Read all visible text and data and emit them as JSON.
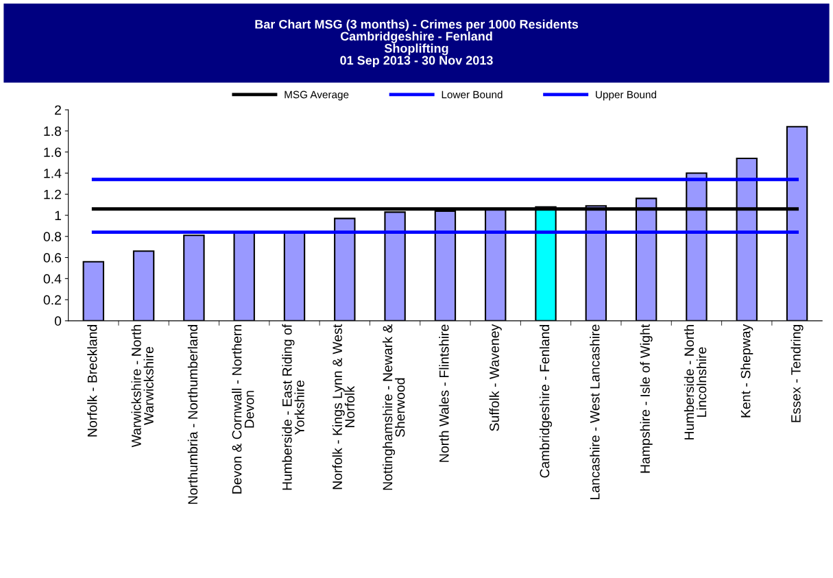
{
  "chart_data": {
    "type": "bar",
    "title": "Bar Chart MSG (3 months) - Crimes per 1000 Residents\nCambridgeshire - Fenland\nShoplifting\n01 Sep 2013 - 30 Nov 2013",
    "categories": [
      "Norfolk - Breckland",
      "Warwickshire - North\nWarwickshire",
      "Northumbria - Northumberland",
      "Devon & Cornwall - Northern\nDevon",
      "Humberside - East Riding of\nYorkshire",
      "Norfolk - Kings Lynn & West\nNorfolk",
      "Nottinghamshire - Newark &\nSherwood",
      "North Wales - Flintshire",
      "Suffolk - Waveney",
      "Cambridgeshire - Fenland",
      "Lancashire - West Lancashire",
      "Hampshire - Isle of Wight",
      "Humberside - North\nLincolnshire",
      "Kent - Shepway",
      "Essex - Tendring"
    ],
    "series": [
      {
        "colors": [
          "#9999ff",
          "#9999ff",
          "#9999ff",
          "#9999ff",
          "#9999ff",
          "#9999ff",
          "#9999ff",
          "#9999ff",
          "#9999ff",
          "#00ffff",
          "#9999ff",
          "#9999ff",
          "#9999ff",
          "#9999ff",
          "#9999ff"
        ],
        "values": [
          0.56,
          0.66,
          0.81,
          0.84,
          0.84,
          0.97,
          1.03,
          1.04,
          1.06,
          1.08,
          1.09,
          1.16,
          1.4,
          1.54,
          1.84
        ]
      },
      {
        "type": "line",
        "name": "MSG Average",
        "color": "#000000",
        "values": [
          1.06,
          1.06,
          1.06,
          1.06,
          1.06,
          1.06,
          1.06,
          1.06,
          1.06,
          1.06,
          1.06,
          1.06,
          1.06,
          1.06,
          1.06
        ]
      },
      {
        "type": "line",
        "name": "Lower Bound",
        "color": "#0000ff",
        "values": [
          0.84,
          0.84,
          0.84,
          0.84,
          0.84,
          0.84,
          0.84,
          0.84,
          0.84,
          0.84,
          0.84,
          0.84,
          0.84,
          0.84,
          0.84
        ]
      },
      {
        "type": "line",
        "name": "Upper Bound",
        "color": "#0000ff",
        "values": [
          1.34,
          1.34,
          1.34,
          1.34,
          1.34,
          1.34,
          1.34,
          1.34,
          1.34,
          1.34,
          1.34,
          1.34,
          1.34,
          1.34,
          1.34
        ]
      }
    ],
    "ylim": [
      0,
      2
    ],
    "yticks": [
      0,
      0.2,
      0.4,
      0.6,
      0.8,
      1,
      1.2,
      1.4,
      1.6,
      1.8,
      2
    ],
    "grid": false,
    "legend": "top",
    "marker": "none",
    "line_style": "solid"
  }
}
